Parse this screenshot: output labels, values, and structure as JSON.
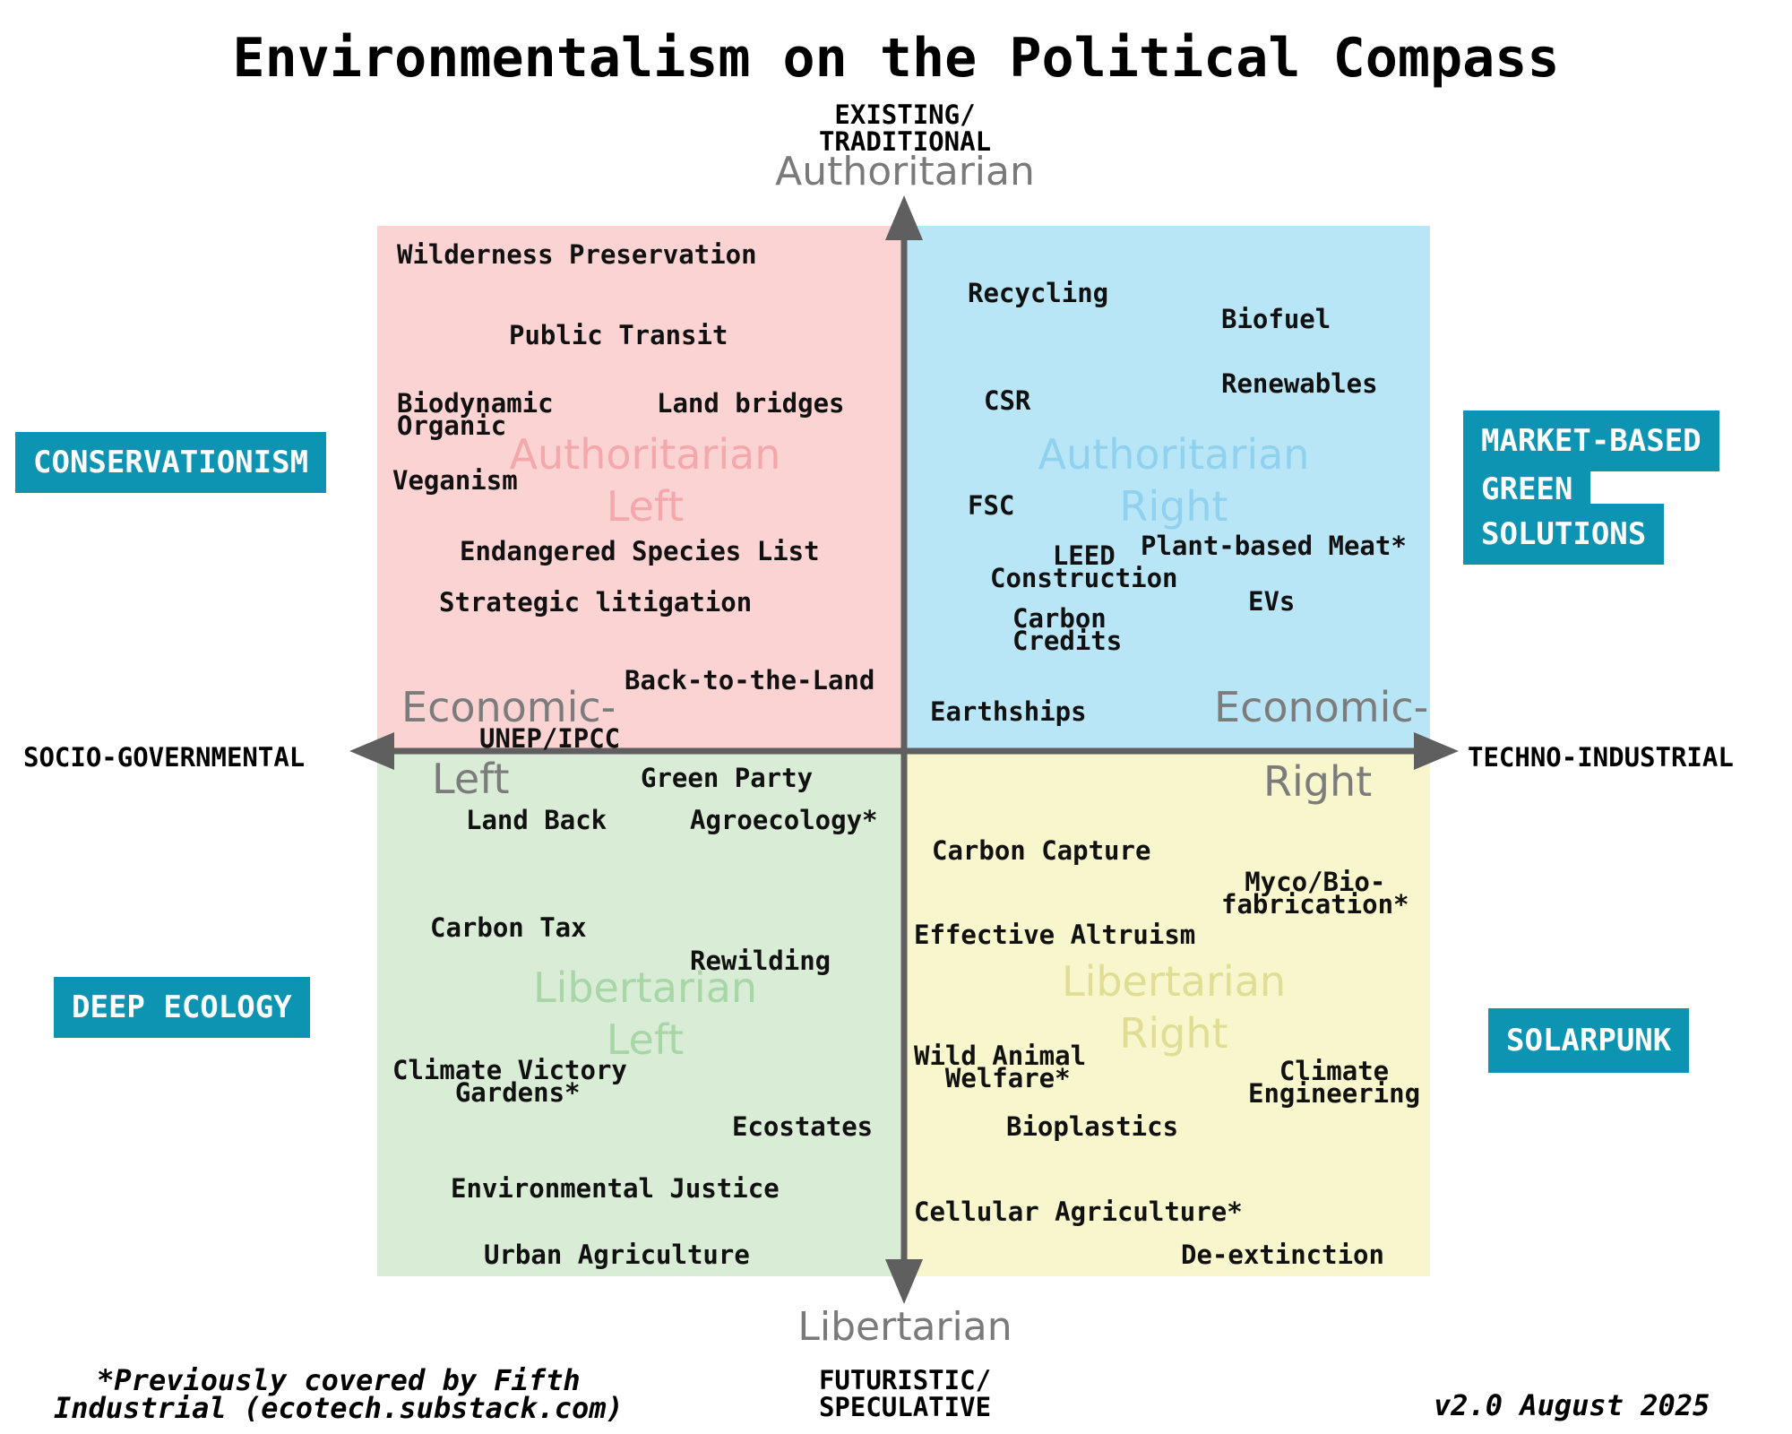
{
  "title": "Environmentalism on the Political Compass",
  "axes": {
    "top_direction": "EXISTING/\nTRADITIONAL",
    "bottom_direction": "FUTURISTIC/\nSPECULATIVE",
    "left_direction": "SOCIO-GOVERNMENTAL",
    "right_direction": "TECHNO-INDUSTRIAL",
    "top_label": "Authoritarian",
    "bottom_label": "Libertarian",
    "left_label_line1": "Economic-",
    "left_label_line2": "Left",
    "right_label_line1": "Economic-",
    "right_label_line2": "Right"
  },
  "quadrant_watermarks": {
    "auth_left": "Authoritarian\nLeft",
    "auth_right": "Authoritarian\nRight",
    "lib_left": "Libertarian\nLeft",
    "lib_right": "Libertarian\nRight"
  },
  "quadrant_colors": {
    "auth_left": "#fbd3d3",
    "auth_right": "#b9e6f7",
    "lib_left": "#d9ecd6",
    "lib_right": "#f8f6cc",
    "badge": "#0e94b3"
  },
  "badges": {
    "conservationism": "CONSERVATIONISM",
    "market_line1": "MARKET-BASED",
    "market_line2": "GREEN",
    "market_line3": "SOLUTIONS",
    "deep_ecology": "DEEP ECOLOGY",
    "solarpunk": "SOLARPUNK"
  },
  "items": {
    "auth_left": [
      "Wilderness Preservation",
      "Public Transit",
      "Biodynamic\nOrganic",
      "Land bridges",
      "Veganism",
      "Endangered Species List",
      "Strategic litigation",
      "Back-to-the-Land",
      "UNEP/IPCC"
    ],
    "auth_right": [
      "Recycling",
      "Biofuel",
      "Renewables",
      "CSR",
      "FSC",
      "LEED\nConstruction",
      "Plant-based Meat*",
      "EVs",
      "Carbon\nCredits",
      "Earthships"
    ],
    "lib_left": [
      "Green Party",
      "Land Back",
      "Agroecology*",
      "Carbon Tax",
      "Rewilding",
      "Climate Victory\n    Gardens*",
      "Ecostates",
      "Environmental Justice",
      "Urban Agriculture"
    ],
    "lib_right": [
      "Carbon Capture",
      "Myco/Bio-\nfabrication*",
      "Effective Altruism",
      "Wild Animal\n  Welfare*",
      "Climate\nEngineering",
      "Bioplastics",
      "Cellular Agriculture*",
      "De-extinction"
    ]
  },
  "footer": {
    "note": "*Previously covered by Fifth\nIndustrial (ecotech.substack.com)",
    "version": "v2.0 August 2025"
  }
}
